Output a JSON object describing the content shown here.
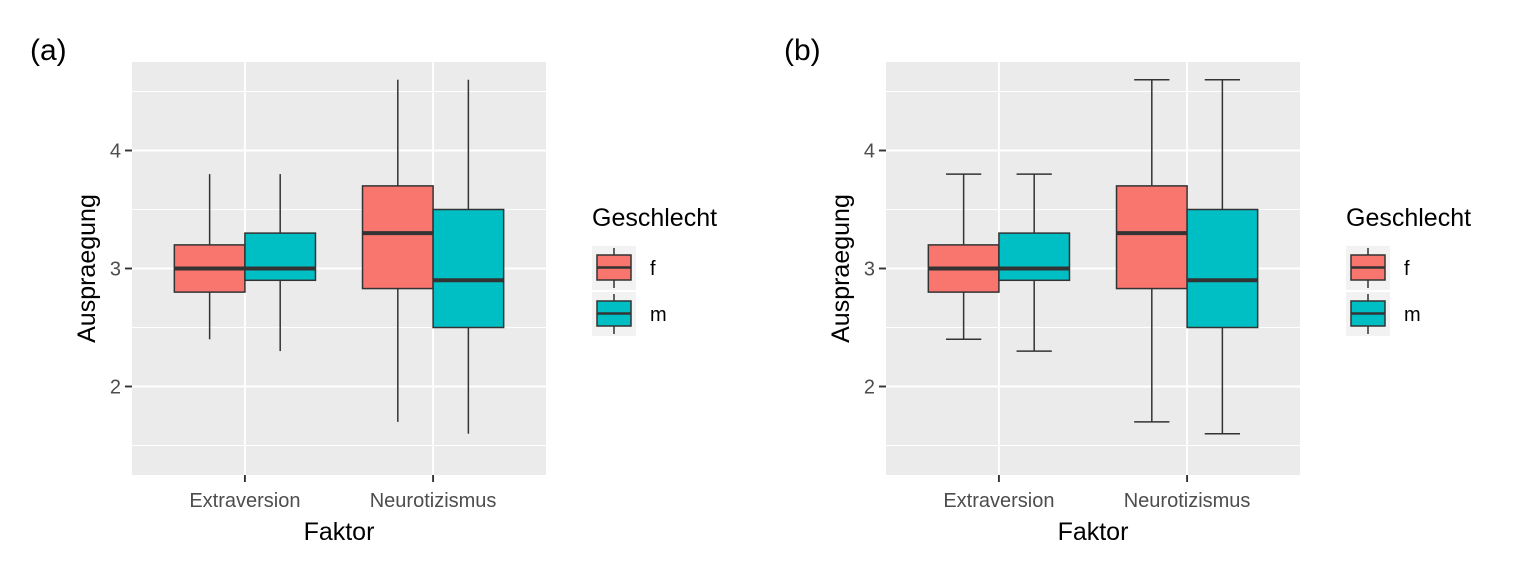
{
  "chart_data": [
    {
      "panel_label": "(a)",
      "type": "boxplot",
      "whisker_caps": false,
      "xlabel": "Faktor",
      "ylabel": "Auspraegung",
      "categories": [
        "Extraversion",
        "Neurotizismus"
      ],
      "ylim": [
        1.25,
        4.75
      ],
      "y_ticks": [
        2,
        3,
        4
      ],
      "grid": true,
      "legend": {
        "title": "Geschlecht",
        "placement": "right",
        "entries": [
          {
            "label": "f",
            "color": "#F8766D"
          },
          {
            "label": "m",
            "color": "#00BFC4"
          }
        ]
      },
      "series": [
        {
          "name": "f",
          "color": "#F8766D",
          "boxes": [
            {
              "min": 2.4,
              "q1": 2.8,
              "median": 3.0,
              "q3": 3.2,
              "max": 3.8
            },
            {
              "min": 1.7,
              "q1": 2.83,
              "median": 3.3,
              "q3": 3.7,
              "max": 4.6
            }
          ]
        },
        {
          "name": "m",
          "color": "#00BFC4",
          "boxes": [
            {
              "min": 2.3,
              "q1": 2.9,
              "median": 3.0,
              "q3": 3.3,
              "max": 3.8
            },
            {
              "min": 1.6,
              "q1": 2.5,
              "median": 2.9,
              "q3": 3.5,
              "max": 4.6
            }
          ]
        }
      ]
    },
    {
      "panel_label": "(b)",
      "type": "boxplot",
      "whisker_caps": true,
      "xlabel": "Faktor",
      "ylabel": "Auspraegung",
      "categories": [
        "Extraversion",
        "Neurotizismus"
      ],
      "ylim": [
        1.25,
        4.75
      ],
      "y_ticks": [
        2,
        3,
        4
      ],
      "grid": true,
      "legend": {
        "title": "Geschlecht",
        "placement": "right",
        "entries": [
          {
            "label": "f",
            "color": "#F8766D"
          },
          {
            "label": "m",
            "color": "#00BFC4"
          }
        ]
      },
      "series": [
        {
          "name": "f",
          "color": "#F8766D",
          "boxes": [
            {
              "min": 2.4,
              "q1": 2.8,
              "median": 3.0,
              "q3": 3.2,
              "max": 3.8
            },
            {
              "min": 1.7,
              "q1": 2.83,
              "median": 3.3,
              "q3": 3.7,
              "max": 4.6
            }
          ]
        },
        {
          "name": "m",
          "color": "#00BFC4",
          "boxes": [
            {
              "min": 2.3,
              "q1": 2.9,
              "median": 3.0,
              "q3": 3.3,
              "max": 3.8
            },
            {
              "min": 1.6,
              "q1": 2.5,
              "median": 2.9,
              "q3": 3.5,
              "max": 4.6
            }
          ]
        }
      ]
    }
  ]
}
